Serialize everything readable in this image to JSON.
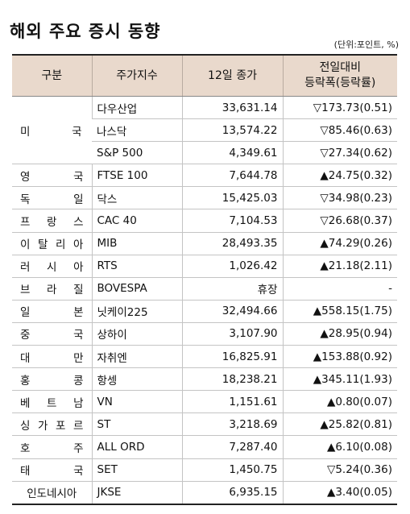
{
  "title": "해외 주요 증시 동향",
  "unit": "(단위:포인트, %)",
  "columns": [
    "구분",
    "주가지수",
    "12일 종가",
    "전일대비",
    "등락폭(등락률)"
  ],
  "us_group_label": "미국",
  "rows": [
    {
      "country": "",
      "index": "다우산업",
      "close": "33,631.14",
      "change": "▽173.73(0.51)"
    },
    {
      "country": "",
      "index": "나스닥",
      "close": "13,574.22",
      "change": "▽85.46(0.63)"
    },
    {
      "country": "",
      "index": "S&P 500",
      "close": "4,349.61",
      "change": "▽27.34(0.62)"
    },
    {
      "country": "영국",
      "index": "FTSE 100",
      "close": "7,644.78",
      "change": "▲24.75(0.32)"
    },
    {
      "country": "독일",
      "index": "닥스",
      "close": "15,425.03",
      "change": "▽34.98(0.23)"
    },
    {
      "country": "프랑스",
      "index": "CAC 40",
      "close": "7,104.53",
      "change": "▽26.68(0.37)"
    },
    {
      "country": "이탈리아",
      "index": "MIB",
      "close": "28,493.35",
      "change": "▲74.29(0.26)"
    },
    {
      "country": "러시아",
      "index": "RTS",
      "close": "1,026.42",
      "change": "▲21.18(2.11)"
    },
    {
      "country": "브라질",
      "index": "BOVESPA",
      "close": "휴장",
      "change": "-"
    },
    {
      "country": "일본",
      "index": "닛케이225",
      "close": "32,494.66",
      "change": "▲558.15(1.75)"
    },
    {
      "country": "중국",
      "index": "상하이",
      "close": "3,107.90",
      "change": "▲28.95(0.94)"
    },
    {
      "country": "대만",
      "index": "자취엔",
      "close": "16,825.91",
      "change": "▲153.88(0.92)"
    },
    {
      "country": "홍콩",
      "index": "항셍",
      "close": "18,238.21",
      "change": "▲345.11(1.93)"
    },
    {
      "country": "베트남",
      "index": "VN",
      "close": "1,151.61",
      "change": "▲0.80(0.07)"
    },
    {
      "country": "싱가포르",
      "index": "ST",
      "close": "3,218.69",
      "change": "▲25.82(0.81)"
    },
    {
      "country": "호주",
      "index": "ALL ORD",
      "close": "7,287.40",
      "change": "▲6.10(0.08)"
    },
    {
      "country": "태국",
      "index": "SET",
      "close": "1,450.75",
      "change": "▽5.24(0.36)"
    },
    {
      "country": "인도네시아",
      "index": "JKSE",
      "close": "6,935.15",
      "change": "▲3.40(0.05)"
    }
  ]
}
